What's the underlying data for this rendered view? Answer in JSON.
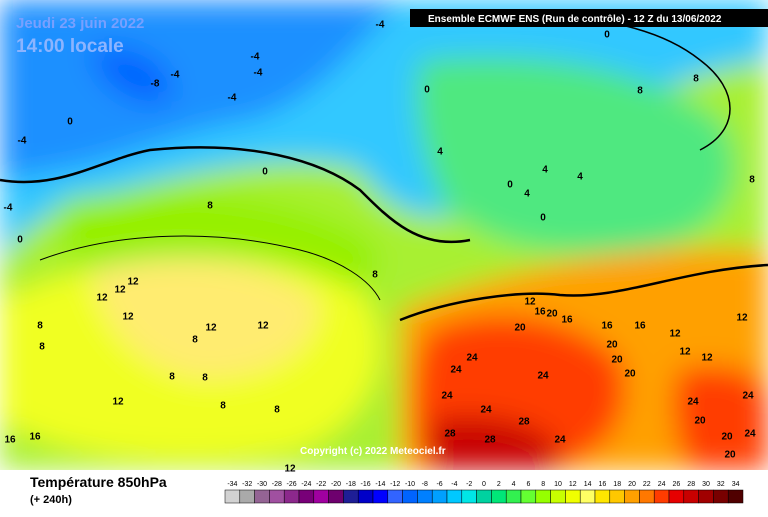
{
  "header": {
    "date": "Jeudi 23 juin 2022",
    "time": "14:00 locale",
    "model": "Ensemble ECMWF ENS  (Run de contrôle)  -  12 Z du 13/06/2022",
    "copyright": "Copyright (c) 2022 Meteociel.fr"
  },
  "legend": {
    "title": "Température 850hPa",
    "subtitle": "(+ 240h)",
    "ticks": [
      -34,
      -32,
      -30,
      -28,
      -26,
      -24,
      -22,
      -20,
      -18,
      -16,
      -14,
      -12,
      -10,
      -8,
      -6,
      -4,
      -2,
      0,
      2,
      4,
      6,
      8,
      10,
      12,
      14,
      16,
      18,
      20,
      22,
      24,
      26,
      28,
      30,
      32,
      34
    ],
    "colors": [
      "#d2d2d2",
      "#aaaaaa",
      "#946494",
      "#a050a0",
      "#8c288c",
      "#780078",
      "#a000a0",
      "#6e006e",
      "#1e1e96",
      "#0000c8",
      "#0000ff",
      "#3264ff",
      "#0064ff",
      "#0080ff",
      "#00a0ff",
      "#00c8ff",
      "#00e6e6",
      "#00d2a0",
      "#00e678",
      "#32f050",
      "#64ff32",
      "#96ff00",
      "#c8ff00",
      "#f0ff00",
      "#ffff64",
      "#ffe600",
      "#ffc800",
      "#ffa000",
      "#ff7800",
      "#ff3c00",
      "#e60000",
      "#c80000",
      "#a00000",
      "#780000",
      "#500000"
    ]
  },
  "contour_labels": [
    -4,
    -4,
    -4,
    -4,
    -4,
    -8,
    0,
    -4,
    -4,
    0,
    0,
    0,
    0,
    4,
    4,
    4,
    4,
    0,
    0,
    8,
    8,
    8,
    8,
    8,
    12,
    12,
    12,
    12,
    12,
    12,
    8,
    8,
    8,
    8,
    8,
    8,
    8,
    12,
    16,
    16,
    12,
    12,
    16,
    20,
    16,
    20,
    16,
    16,
    12,
    12,
    12,
    12,
    20,
    20,
    20,
    24,
    24,
    24,
    24,
    24,
    28,
    28,
    28,
    24,
    24,
    24,
    20,
    20,
    24,
    20
  ]
}
